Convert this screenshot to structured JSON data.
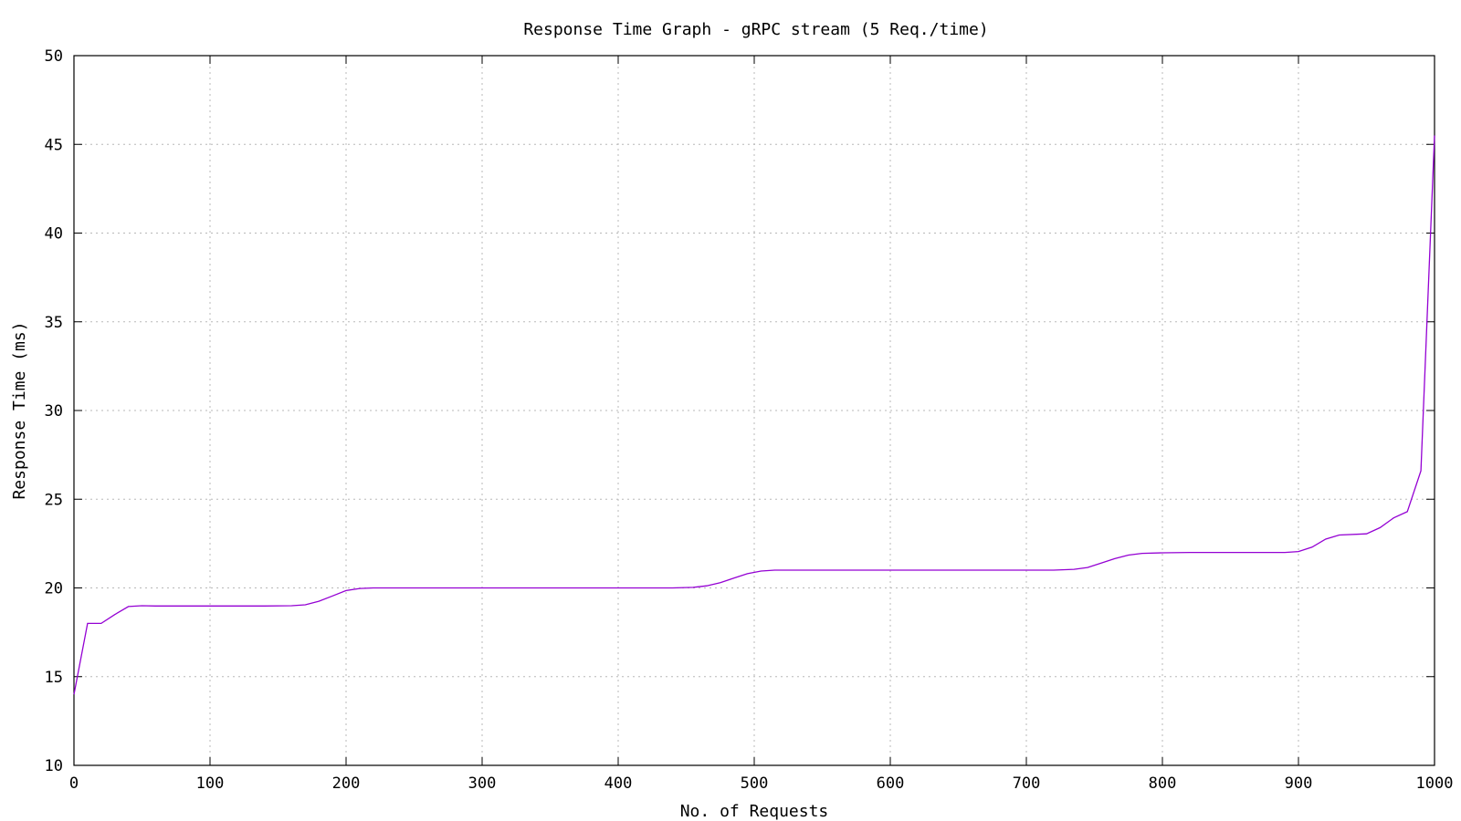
{
  "chart_data": {
    "type": "line",
    "title": "Response Time Graph - gRPC stream (5 Req./time)",
    "xlabel": "No. of Requests",
    "ylabel": "Response Time (ms)",
    "xlim": [
      0,
      1000
    ],
    "ylim": [
      10,
      50
    ],
    "xticks": [
      0,
      100,
      200,
      300,
      400,
      500,
      600,
      700,
      800,
      900,
      1000
    ],
    "yticks": [
      10,
      15,
      20,
      25,
      30,
      35,
      40,
      45,
      50
    ],
    "grid": true,
    "legend": "none",
    "series": [
      {
        "color": "#9400d3",
        "x": [
          0,
          10,
          20,
          30,
          40,
          50,
          60,
          80,
          100,
          120,
          140,
          160,
          170,
          180,
          190,
          200,
          210,
          220,
          240,
          260,
          300,
          350,
          400,
          440,
          455,
          465,
          475,
          485,
          495,
          505,
          515,
          525,
          540,
          600,
          650,
          700,
          720,
          735,
          745,
          755,
          765,
          775,
          785,
          800,
          820,
          850,
          890,
          900,
          910,
          920,
          930,
          950,
          960,
          970,
          980,
          990,
          1000
        ],
        "y": [
          14.0,
          18.0,
          18.0,
          18.5,
          18.95,
          19.0,
          18.98,
          18.98,
          18.98,
          18.98,
          18.98,
          19.0,
          19.05,
          19.25,
          19.55,
          19.85,
          19.97,
          20.0,
          20.0,
          20.0,
          20.0,
          20.0,
          20.0,
          20.0,
          20.03,
          20.12,
          20.3,
          20.55,
          20.8,
          20.95,
          21.0,
          21.0,
          21.0,
          21.0,
          21.0,
          21.0,
          21.0,
          21.05,
          21.15,
          21.4,
          21.65,
          21.85,
          21.95,
          21.98,
          22.0,
          22.0,
          22.0,
          22.05,
          22.3,
          22.75,
          22.98,
          23.05,
          23.4,
          23.95,
          24.3,
          26.6,
          45.5
        ]
      }
    ]
  }
}
